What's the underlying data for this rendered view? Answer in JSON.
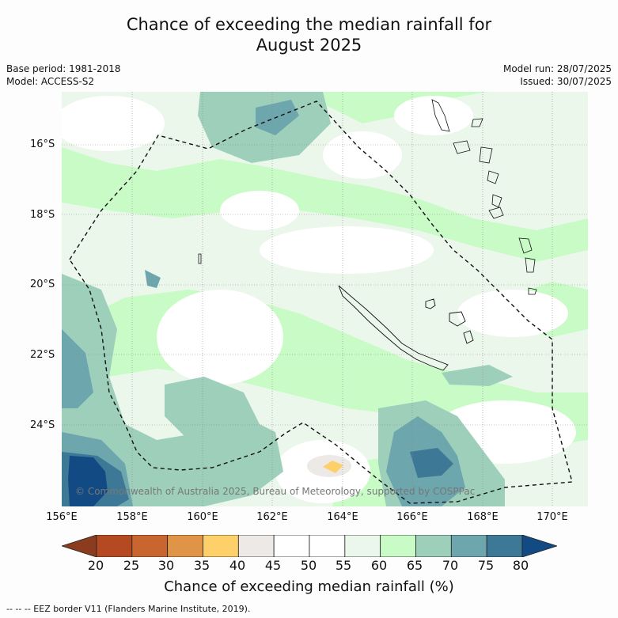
{
  "title_line1": "Chance of exceeding the median rainfall for",
  "title_line2": "August 2025",
  "base_period": "Base period: 1981-2018",
  "model": "Model: ACCESS-S2",
  "model_run": "Model run: 28/07/2025",
  "issued": "Issued: 30/07/2025",
  "copyright": "© Commonwealth of Australia 2025, Bureau of Meteorology, supported by COSPPac",
  "lat_labels": [
    "16°S",
    "18°S",
    "20°S",
    "22°S",
    "24°S"
  ],
  "lon_labels": [
    "156°E",
    "158°E",
    "160°E",
    "162°E",
    "164°E",
    "166°E",
    "168°E",
    "170°E"
  ],
  "colorbar": {
    "ticks": [
      "20",
      "25",
      "30",
      "35",
      "40",
      "45",
      "50",
      "55",
      "60",
      "65",
      "70",
      "75",
      "80"
    ],
    "colors": [
      "#8c3c1e",
      "#b54a22",
      "#c96630",
      "#e09448",
      "#fed06a",
      "#ece9e6",
      "#ffffff",
      "#ffffff",
      "#ecf7ec",
      "#c9fbc7",
      "#9dcfbb",
      "#6da6ad",
      "#3d7997",
      "#124b84"
    ],
    "title": "Chance of exceeding median rainfall (%)"
  },
  "footer": "--  --  -- EEZ border V11 (Flanders Marine Institute, 2019)."
}
